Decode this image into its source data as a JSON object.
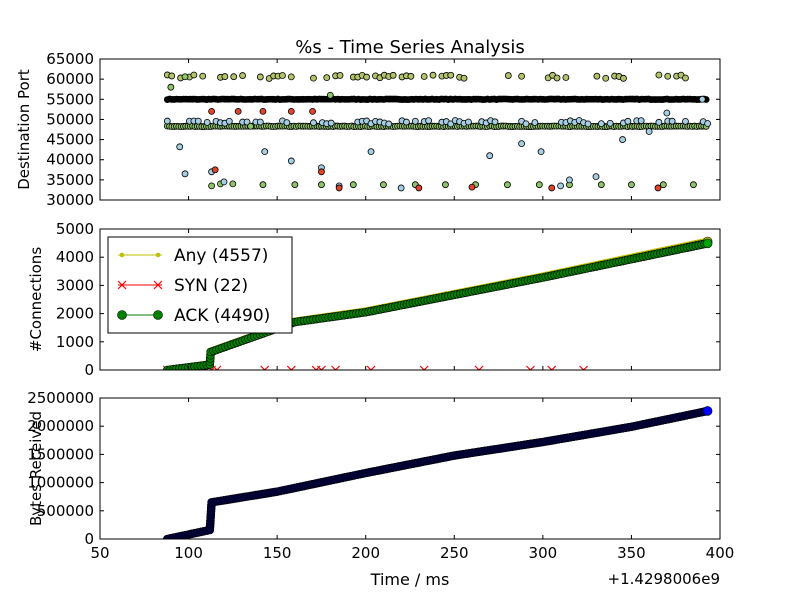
{
  "figure": {
    "title": "%s - Time Series Analysis",
    "xlabel": "Time / ms",
    "offset_label": "+1.4298006e9",
    "background": "#ffffff"
  },
  "chart_data": [
    {
      "type": "scatter",
      "ylabel": "Destination Port",
      "xlim": [
        50,
        400
      ],
      "ylim": [
        30000,
        65000
      ],
      "x_ticks": [
        50,
        100,
        150,
        200,
        250,
        300,
        350,
        400
      ],
      "y_ticks": [
        30000,
        35000,
        40000,
        45000,
        50000,
        55000,
        60000,
        65000
      ],
      "x_tick_labels_shown": false,
      "colors": {
        "main": "#000000",
        "light_blue": "#a6cee3",
        "green": "#8fc36b",
        "olive": "#b2c46a",
        "red": "#e0452c"
      },
      "series": [
        {
          "color_key": "main",
          "band": {
            "x_start": 88,
            "x_end": 393,
            "y": 55000
          }
        },
        {
          "color_key": "green",
          "band": {
            "x_start": 88,
            "x_end": 393,
            "y": 48300
          }
        },
        {
          "color_key": "light_blue",
          "band_sparse": {
            "x_start": 88,
            "x_end": 393,
            "y": 49300
          }
        },
        {
          "color_key": "olive",
          "band_sparse": {
            "x_start": 88,
            "x_end": 393,
            "y": 60600
          }
        },
        {
          "color_key": "green",
          "points": [
            [
              90,
              58000
            ],
            [
              98,
              60600
            ],
            [
              113,
              33500
            ],
            [
              118,
              34000
            ],
            [
              125,
              34000
            ],
            [
              142,
              33800
            ],
            [
              160,
              33800
            ],
            [
              175,
              33800
            ],
            [
              193,
              33800
            ],
            [
              210,
              33800
            ],
            [
              228,
              33800
            ],
            [
              245,
              33800
            ],
            [
              262,
              33800
            ],
            [
              280,
              33800
            ],
            [
              298,
              33800
            ],
            [
              315,
              33800
            ],
            [
              333,
              33800
            ],
            [
              350,
              33800
            ],
            [
              368,
              33800
            ],
            [
              385,
              33800
            ],
            [
              135,
              48300
            ],
            [
              180,
              56000
            ]
          ]
        },
        {
          "color_key": "light_blue",
          "points": [
            [
              95,
              43200
            ],
            [
              98,
              36500
            ],
            [
              113,
              37000
            ],
            [
              120,
              34500
            ],
            [
              143,
              42000
            ],
            [
              158,
              39700
            ],
            [
              175,
              38000
            ],
            [
              185,
              33500
            ],
            [
              203,
              42000
            ],
            [
              220,
              33000
            ],
            [
              270,
              41000
            ],
            [
              288,
              44000
            ],
            [
              299,
              42000
            ],
            [
              310,
              33500
            ],
            [
              315,
              35000
            ],
            [
              330,
              35800
            ],
            [
              345,
              45000
            ],
            [
              370,
              51600
            ],
            [
              360,
              47000
            ],
            [
              390,
              55000
            ]
          ]
        },
        {
          "color_key": "red",
          "points": [
            [
              113,
              52000
            ],
            [
              115,
              37500
            ],
            [
              128,
              52000
            ],
            [
              142,
              52000
            ],
            [
              158,
              52000
            ],
            [
              170,
              52000
            ],
            [
              175,
              37000
            ],
            [
              185,
              33000
            ],
            [
              230,
              33000
            ],
            [
              260,
              33200
            ],
            [
              305,
              33000
            ],
            [
              365,
              33000
            ]
          ]
        }
      ]
    },
    {
      "type": "line",
      "ylabel": "#Connections",
      "xlim": [
        50,
        400
      ],
      "ylim": [
        0,
        5000
      ],
      "x_ticks": [
        50,
        100,
        150,
        200,
        250,
        300,
        350,
        400
      ],
      "y_ticks": [
        0,
        1000,
        2000,
        3000,
        4000,
        5000
      ],
      "x_tick_labels_shown": false,
      "legend": {
        "placement": "upper-left"
      },
      "series": [
        {
          "name": "Any (4557)",
          "color": "#bfbf00",
          "marker": "dot",
          "x": [
            88,
            112,
            112.5,
            160,
            200,
            300,
            393
          ],
          "y": [
            0,
            200,
            650,
            1720,
            2080,
            3320,
            4557
          ]
        },
        {
          "name": "SYN (22)",
          "color": "#ff0000",
          "marker": "x",
          "x": [
            88,
            90,
            92,
            95,
            98,
            101,
            104,
            107,
            110,
            113,
            116,
            143,
            158,
            172,
            175,
            183,
            203,
            233,
            264,
            293,
            305,
            323
          ],
          "y": [
            0,
            0,
            0,
            0,
            0,
            0,
            0,
            0,
            0,
            0,
            0,
            0,
            0,
            0,
            0,
            0,
            0,
            0,
            0,
            0,
            0,
            0
          ]
        },
        {
          "name": "ACK (4490)",
          "color": "#007f00",
          "marker": "circle",
          "x": [
            88,
            112,
            112.5,
            160,
            200,
            300,
            393
          ],
          "y": [
            0,
            190,
            640,
            1700,
            2050,
            3280,
            4490
          ]
        }
      ]
    },
    {
      "type": "line",
      "ylabel": "Bytes Received",
      "xlim": [
        50,
        400
      ],
      "ylim": [
        0,
        2500000
      ],
      "x_ticks": [
        50,
        100,
        150,
        200,
        250,
        300,
        350,
        400
      ],
      "y_ticks": [
        0,
        500000,
        1000000,
        1500000,
        2000000,
        2500000
      ],
      "x_tick_labels": [
        "50",
        "100",
        "150",
        "200",
        "250",
        "300",
        "350",
        "400"
      ],
      "series": [
        {
          "color": "#00003f",
          "end_color": "#0000ff",
          "marker": "circle",
          "x": [
            88,
            112,
            113,
            150,
            200,
            250,
            300,
            350,
            393
          ],
          "y": [
            0,
            160000,
            650000,
            840000,
            1170000,
            1480000,
            1720000,
            1990000,
            2270000
          ]
        }
      ]
    }
  ]
}
